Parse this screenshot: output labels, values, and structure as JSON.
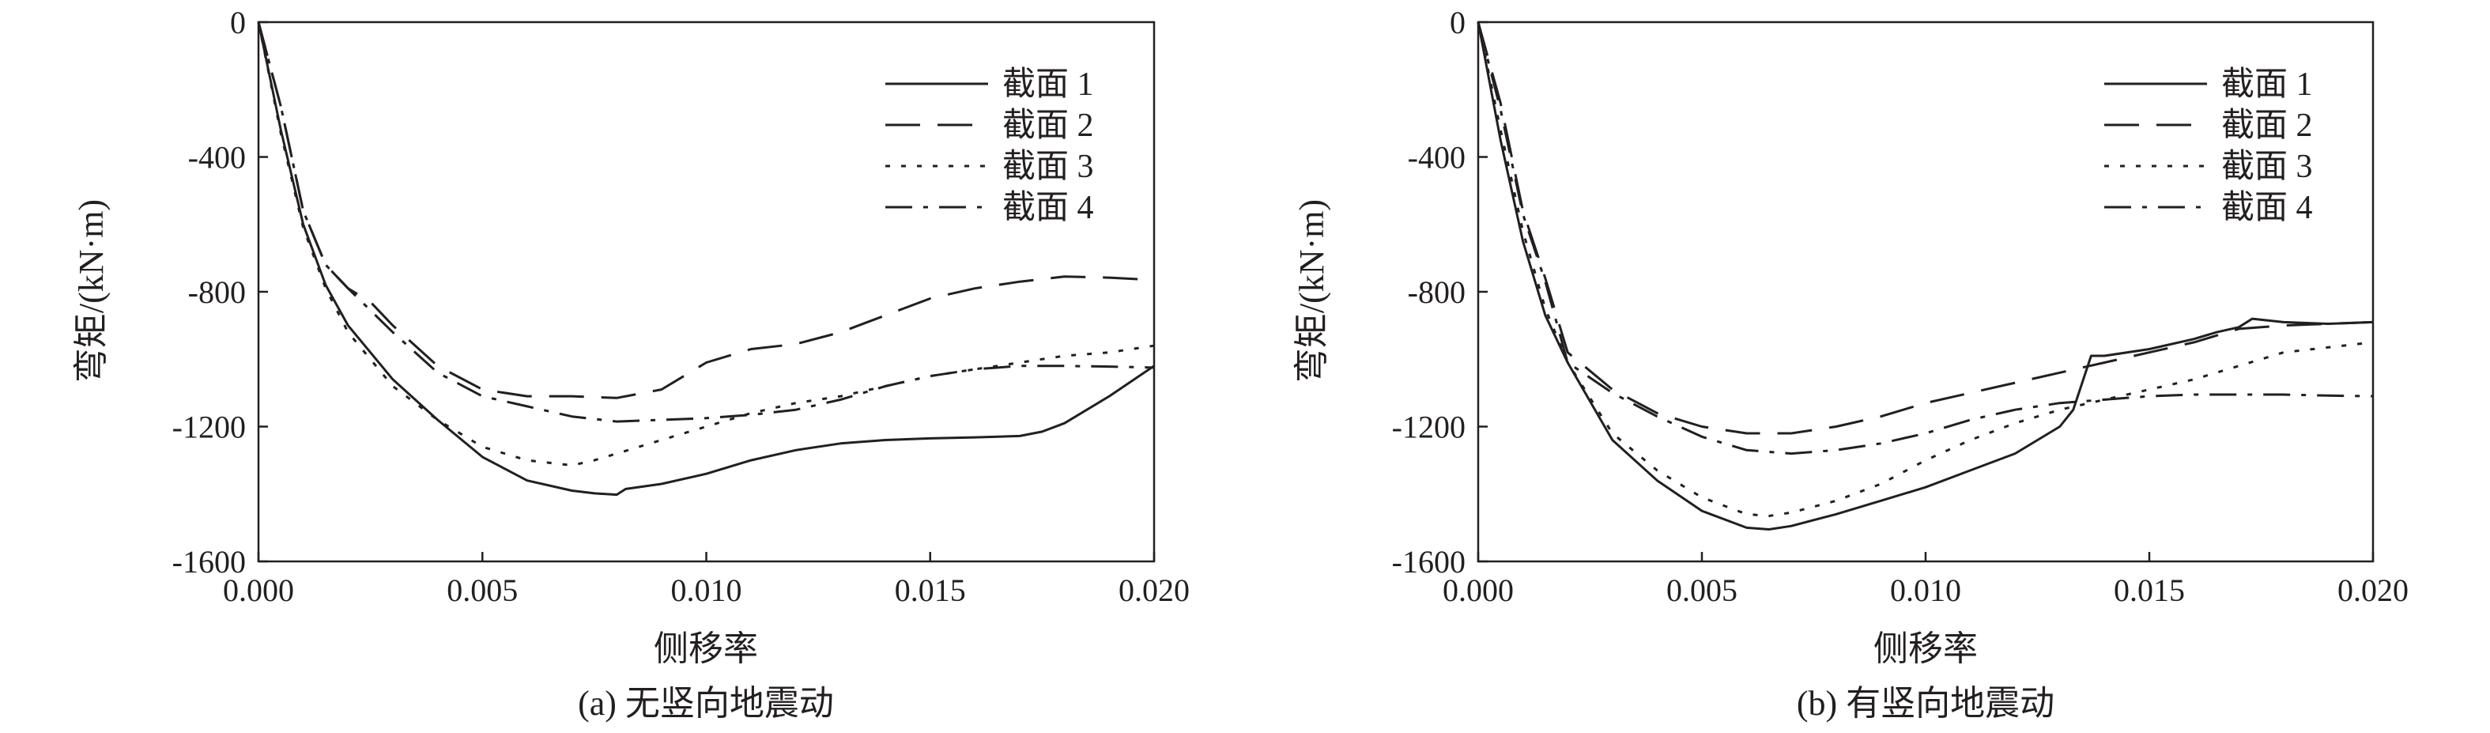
{
  "chart_data": [
    {
      "type": "line",
      "caption": "(a) 无竖向地震动",
      "xlabel": "侧移率",
      "ylabel": "弯矩/(kN·m)",
      "xlim": [
        0,
        0.02
      ],
      "ylim": [
        -1600,
        0
      ],
      "xticks": [
        "0.000",
        "0.005",
        "0.010",
        "0.015",
        "0.020"
      ],
      "yticks": [
        "0",
        "-400",
        "-800",
        "-1200",
        "-1600"
      ],
      "legend_position": "top-right",
      "series": [
        {
          "name": "截面 1",
          "dash": "solid",
          "x": [
            0,
            0.0005,
            0.001,
            0.0015,
            0.002,
            0.003,
            0.004,
            0.005,
            0.006,
            0.007,
            0.0075,
            0.008,
            0.0082,
            0.009,
            0.01,
            0.011,
            0.012,
            0.013,
            0.014,
            0.015,
            0.016,
            0.017,
            0.0175,
            0.018,
            0.019,
            0.02
          ],
          "y": [
            0,
            -320,
            -600,
            -780,
            -900,
            -1060,
            -1180,
            -1290,
            -1360,
            -1390,
            -1398,
            -1402,
            -1385,
            -1370,
            -1340,
            -1300,
            -1270,
            -1250,
            -1240,
            -1235,
            -1232,
            -1228,
            -1215,
            -1190,
            -1110,
            -1020
          ]
        },
        {
          "name": "截面 2",
          "dash": "long",
          "x": [
            0,
            0.0005,
            0.001,
            0.0015,
            0.002,
            0.0025,
            0.003,
            0.004,
            0.005,
            0.006,
            0.007,
            0.008,
            0.009,
            0.01,
            0.011,
            0.012,
            0.013,
            0.014,
            0.015,
            0.016,
            0.017,
            0.018,
            0.019,
            0.02
          ],
          "y": [
            0,
            -250,
            -560,
            -720,
            -790,
            -830,
            -900,
            -1020,
            -1090,
            -1110,
            -1110,
            -1115,
            -1090,
            -1010,
            -970,
            -955,
            -920,
            -870,
            -820,
            -790,
            -770,
            -755,
            -758,
            -765
          ]
        },
        {
          "name": "截面 3",
          "dash": "dot",
          "x": [
            0,
            0.0005,
            0.001,
            0.0015,
            0.002,
            0.003,
            0.004,
            0.005,
            0.006,
            0.007,
            0.0075,
            0.008,
            0.009,
            0.01,
            0.011,
            0.012,
            0.013,
            0.014,
            0.015,
            0.016,
            0.017,
            0.018,
            0.019,
            0.02
          ],
          "y": [
            0,
            -330,
            -610,
            -790,
            -920,
            -1080,
            -1180,
            -1260,
            -1300,
            -1315,
            -1300,
            -1280,
            -1240,
            -1200,
            -1160,
            -1130,
            -1110,
            -1080,
            -1050,
            -1030,
            -1010,
            -990,
            -980,
            -960
          ]
        },
        {
          "name": "截面 4",
          "dash": "dashdot",
          "x": [
            0,
            0.0005,
            0.001,
            0.0015,
            0.002,
            0.003,
            0.004,
            0.005,
            0.006,
            0.007,
            0.008,
            0.009,
            0.01,
            0.011,
            0.012,
            0.013,
            0.014,
            0.015,
            0.016,
            0.017,
            0.018,
            0.019,
            0.02
          ],
          "y": [
            0,
            -250,
            -560,
            -720,
            -790,
            -920,
            -1040,
            -1110,
            -1140,
            -1170,
            -1185,
            -1180,
            -1175,
            -1165,
            -1150,
            -1120,
            -1080,
            -1050,
            -1030,
            -1020,
            -1020,
            -1022,
            -1025
          ]
        }
      ]
    },
    {
      "type": "line",
      "caption": "(b) 有竖向地震动",
      "xlabel": "侧移率",
      "ylabel": "弯矩/(kN·m)",
      "xlim": [
        0,
        0.02
      ],
      "ylim": [
        -1600,
        0
      ],
      "xticks": [
        "0.000",
        "0.005",
        "0.010",
        "0.015",
        "0.020"
      ],
      "yticks": [
        "0",
        "-400",
        "-800",
        "-1200",
        "-1600"
      ],
      "legend_position": "top-right",
      "series": [
        {
          "name": "截面 1",
          "dash": "solid",
          "x": [
            0,
            0.0005,
            0.001,
            0.0015,
            0.002,
            0.003,
            0.004,
            0.005,
            0.006,
            0.0065,
            0.007,
            0.008,
            0.009,
            0.01,
            0.011,
            0.012,
            0.013,
            0.0133,
            0.0137,
            0.014,
            0.015,
            0.016,
            0.0165,
            0.017,
            0.0173,
            0.018,
            0.019,
            0.02
          ],
          "y": [
            0,
            -350,
            -650,
            -870,
            -1010,
            -1240,
            -1360,
            -1450,
            -1500,
            -1505,
            -1495,
            -1460,
            -1420,
            -1380,
            -1330,
            -1280,
            -1200,
            -1150,
            -990,
            -990,
            -970,
            -940,
            -920,
            -905,
            -880,
            -890,
            -895,
            -890
          ]
        },
        {
          "name": "截面 2",
          "dash": "long",
          "x": [
            0,
            0.0005,
            0.001,
            0.0015,
            0.002,
            0.003,
            0.004,
            0.005,
            0.006,
            0.007,
            0.008,
            0.009,
            0.01,
            0.011,
            0.012,
            0.013,
            0.014,
            0.015,
            0.016,
            0.017,
            0.018,
            0.019,
            0.02
          ],
          "y": [
            0,
            -240,
            -560,
            -760,
            -980,
            -1090,
            -1160,
            -1200,
            -1220,
            -1220,
            -1200,
            -1170,
            -1130,
            -1100,
            -1070,
            -1040,
            -1010,
            -980,
            -950,
            -910,
            -900,
            -895,
            -890
          ]
        },
        {
          "name": "截面 3",
          "dash": "dot",
          "x": [
            0,
            0.0005,
            0.001,
            0.0015,
            0.002,
            0.003,
            0.004,
            0.005,
            0.006,
            0.0065,
            0.007,
            0.008,
            0.009,
            0.01,
            0.011,
            0.012,
            0.013,
            0.014,
            0.015,
            0.016,
            0.017,
            0.018,
            0.019,
            0.02
          ],
          "y": [
            0,
            -320,
            -620,
            -850,
            -1010,
            -1220,
            -1330,
            -1410,
            -1460,
            -1465,
            -1455,
            -1420,
            -1370,
            -1300,
            -1240,
            -1190,
            -1150,
            -1120,
            -1090,
            -1060,
            -1020,
            -980,
            -965,
            -950
          ]
        },
        {
          "name": "截面 4",
          "dash": "dashdot",
          "x": [
            0,
            0.0005,
            0.001,
            0.0015,
            0.002,
            0.003,
            0.004,
            0.005,
            0.006,
            0.007,
            0.008,
            0.009,
            0.01,
            0.011,
            0.012,
            0.013,
            0.014,
            0.015,
            0.016,
            0.017,
            0.018,
            0.019,
            0.02
          ],
          "y": [
            0,
            -260,
            -570,
            -770,
            -1010,
            -1100,
            -1170,
            -1230,
            -1270,
            -1280,
            -1270,
            -1250,
            -1220,
            -1180,
            -1150,
            -1130,
            -1120,
            -1110,
            -1105,
            -1105,
            -1105,
            -1108,
            -1110
          ]
        }
      ]
    }
  ]
}
